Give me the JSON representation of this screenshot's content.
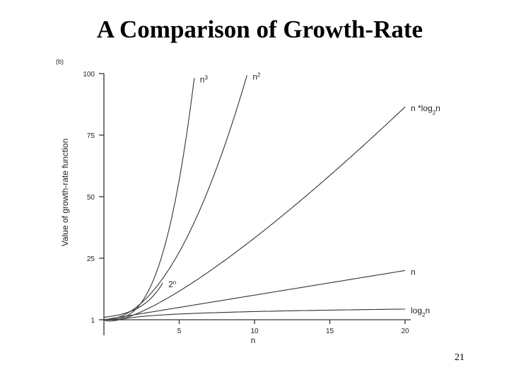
{
  "slide": {
    "title": "A Comparison of Growth-Rate",
    "page_number": "21"
  },
  "chart_data": {
    "type": "line",
    "panel_label": "(b)",
    "xlabel": "n",
    "ylabel": "Value of growth-rate function",
    "xlim": [
      0,
      20
    ],
    "ylim": [
      0,
      100
    ],
    "x_ticks": [
      5,
      10,
      15,
      20
    ],
    "y_ticks": [
      1,
      25,
      50,
      75,
      100
    ],
    "grid": false,
    "series": [
      {
        "name": "2ⁿ",
        "label_base": "2",
        "label_sup": "n",
        "label_sub": "",
        "label_tail": "",
        "fn": "pow2",
        "x_end": 3.9
      },
      {
        "name": "n³",
        "label_base": "n",
        "label_sup": "3",
        "label_sub": "",
        "label_tail": "",
        "fn": "cube",
        "x_end": 6.0
      },
      {
        "name": "n²",
        "label_base": "n",
        "label_sup": "2",
        "label_sub": "",
        "label_tail": "",
        "fn": "square",
        "x_end": 9.5
      },
      {
        "name": "n *log₂n",
        "label_base": "n *log",
        "label_sup": "",
        "label_sub": "2",
        "label_tail": "n",
        "fn": "nlogn",
        "x_end": 20
      },
      {
        "name": "n",
        "label_base": "n",
        "label_sup": "",
        "label_sub": "",
        "label_tail": "",
        "fn": "linear",
        "x_end": 20
      },
      {
        "name": "log₂n",
        "label_base": "log",
        "label_sup": "",
        "label_sub": "2",
        "label_tail": "n",
        "fn": "log2",
        "x_end": 20
      }
    ]
  }
}
